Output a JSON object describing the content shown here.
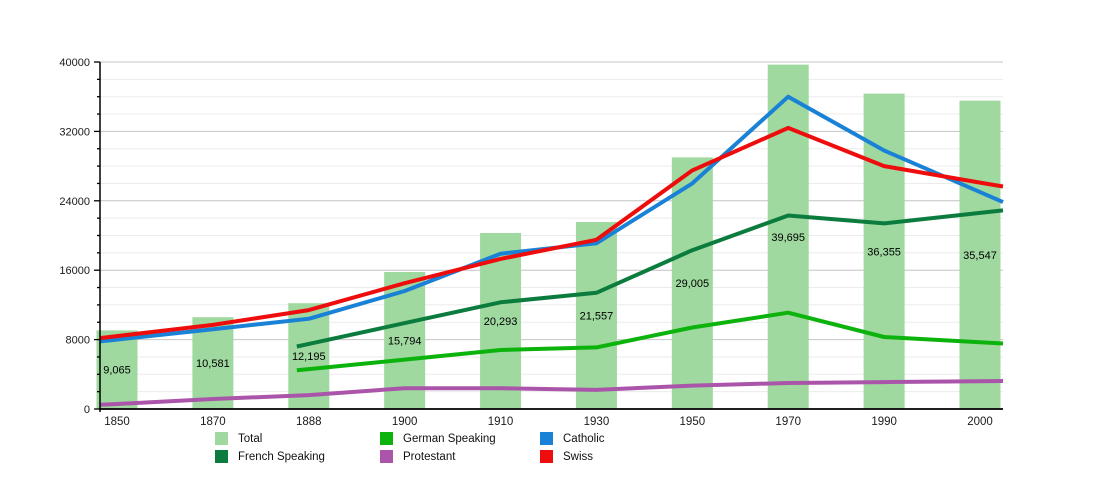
{
  "chart_data": {
    "type": "bar",
    "subtype": "bar-and-line-combo",
    "title": "",
    "xlabel": "",
    "ylabel": "",
    "categories": [
      "1850",
      "1870",
      "1888",
      "1900",
      "1910",
      "1930",
      "1950",
      "1970",
      "1990",
      "2000"
    ],
    "bar_series": {
      "name": "Total",
      "color": "#9fd99f",
      "values": [
        9065,
        10581,
        12195,
        15794,
        20293,
        21557,
        29005,
        39695,
        36355,
        35547
      ],
      "value_labels": [
        "9,065",
        "10,581",
        "12,195",
        "15,794",
        "20,293",
        "21,557",
        "29,005",
        "39,695",
        "36,355",
        "35,547"
      ]
    },
    "series": [
      {
        "name": "French Speaking",
        "type": "line",
        "color": "#0b7c3e",
        "values": [
          null,
          null,
          7500,
          9900,
          12300,
          13400,
          18300,
          22300,
          21400,
          22600
        ]
      },
      {
        "name": "German Speaking",
        "type": "line",
        "color": "#0cb30c",
        "values": [
          null,
          null,
          4600,
          5700,
          6800,
          7100,
          9400,
          11100,
          8300,
          7700
        ]
      },
      {
        "name": "Protestant",
        "type": "line",
        "color": "#aa55aa",
        "values": [
          580,
          1150,
          1600,
          2400,
          2400,
          2200,
          2700,
          3000,
          3100,
          3200
        ]
      },
      {
        "name": "Catholic",
        "type": "line",
        "color": "#1a82d6",
        "values": [
          8000,
          9200,
          10400,
          13600,
          17900,
          19100,
          26000,
          36000,
          29800,
          25000
        ]
      },
      {
        "name": "Swiss",
        "type": "line",
        "color": "#ee0d0d",
        "values": [
          8400,
          9700,
          11400,
          14500,
          17300,
          19500,
          27500,
          32400,
          28000,
          26100
        ]
      }
    ],
    "y_axis": {
      "min": 0,
      "max": 40000,
      "major_step": 8000,
      "minor_step": 2000,
      "tick_labels": [
        "0",
        "8000",
        "16000",
        "24000",
        "32000",
        "40000"
      ]
    },
    "grid": {
      "major_on": true,
      "minor_on": true
    },
    "legend": {
      "position": "bottom",
      "items": [
        {
          "label": "Total",
          "color": "#9fd99f",
          "col": 0,
          "row": 0
        },
        {
          "label": "French Speaking",
          "color": "#0b7c3e",
          "col": 0,
          "row": 1
        },
        {
          "label": "German Speaking",
          "color": "#0cb30c",
          "col": 1,
          "row": 0
        },
        {
          "label": "Protestant",
          "color": "#aa55aa",
          "col": 1,
          "row": 1
        },
        {
          "label": "Catholic",
          "color": "#1a82d6",
          "col": 2,
          "row": 0
        },
        {
          "label": "Swiss",
          "color": "#ee0d0d",
          "col": 2,
          "row": 1
        }
      ]
    }
  },
  "colors": {
    "axis": "#000000",
    "major_grid": "#c4c4c4",
    "minor_grid": "#ebebeb",
    "tick_text": "#1a1a1a",
    "bar_label_text": "#000000"
  }
}
